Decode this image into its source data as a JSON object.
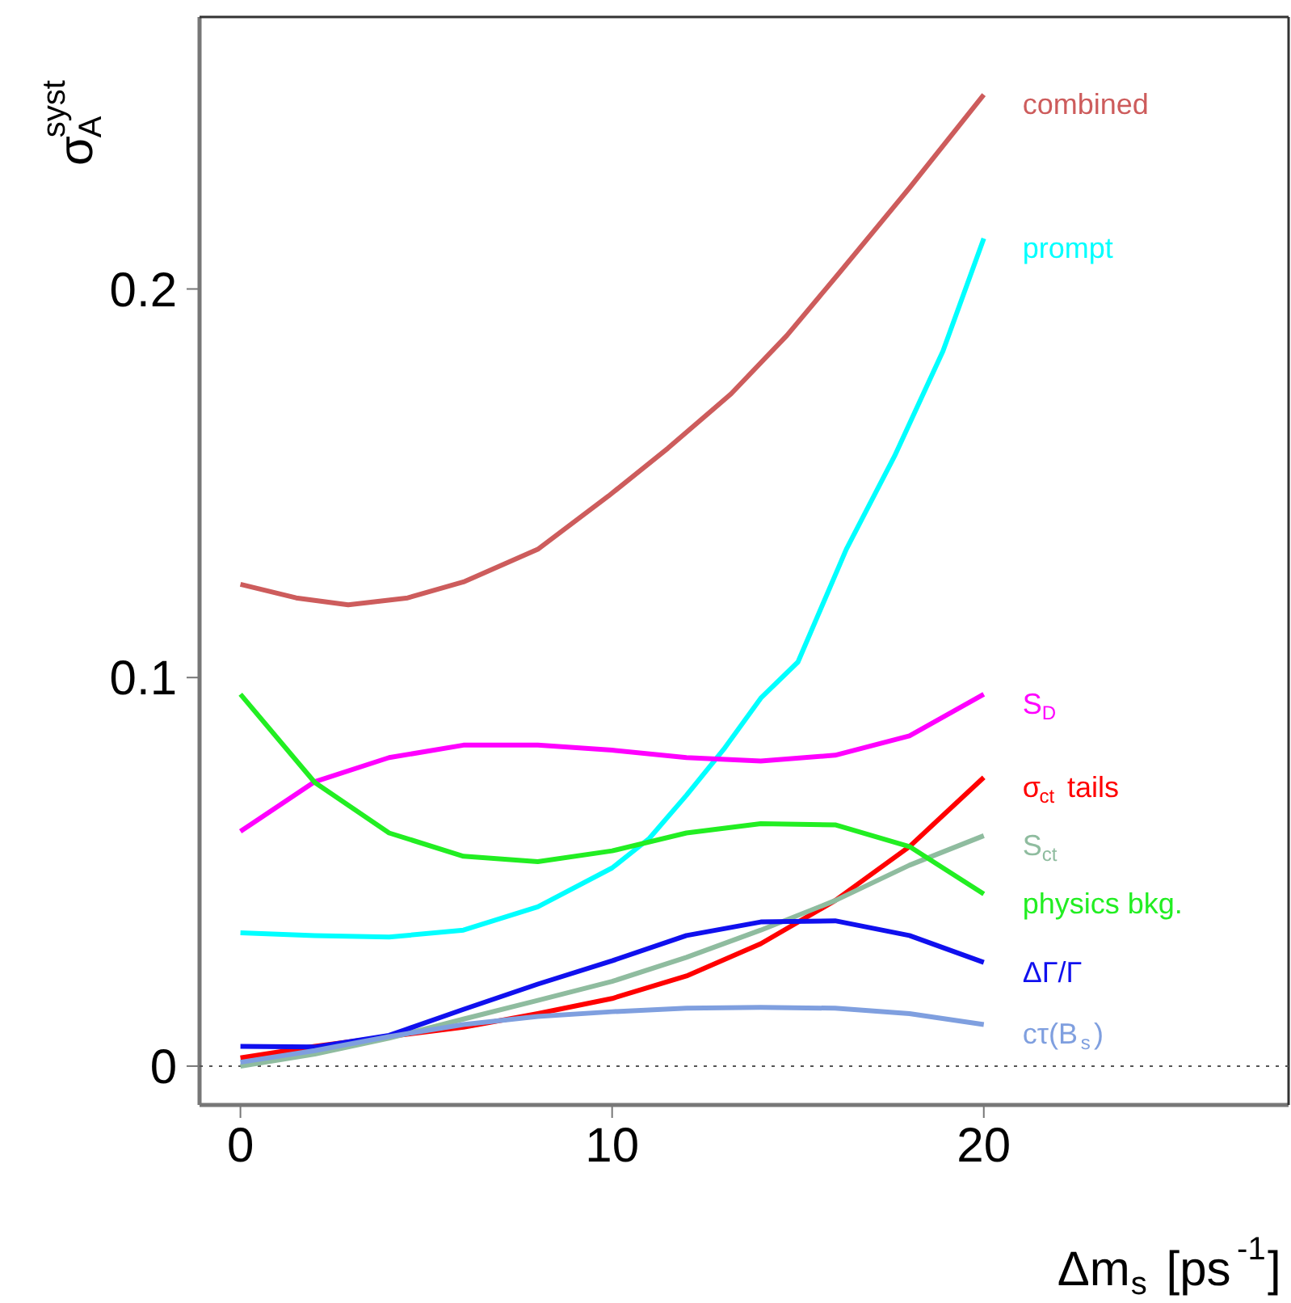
{
  "chart_data": {
    "type": "line",
    "xlabel": "Δm$_{s}$ [ps$^{-1}$]",
    "ylabel": "σ$_{A}$$^{syst}$",
    "xlim": [
      -1.1,
      28.2
    ],
    "ylim": [
      -0.01,
      0.27
    ],
    "xticks": [
      0,
      10,
      20
    ],
    "yticks": [
      0,
      0.1,
      0.2
    ],
    "grid": false,
    "marker": "none",
    "line_style": "solid",
    "ref_lines": [
      {
        "axis": "y",
        "value": 0,
        "color": "#555555",
        "line_style": "dotted"
      }
    ],
    "x": [
      0,
      2,
      4,
      6,
      8,
      10,
      12,
      14,
      16,
      18,
      20
    ],
    "series": [
      {
        "name": "combined",
        "color": "#cd5c5c",
        "x": [
          0,
          1.5,
          2.9,
          4.5,
          6,
          8,
          9.9,
          11.5,
          13.2,
          14.7,
          16.1,
          18,
          20
        ],
        "values": [
          0.124,
          0.1205,
          0.1187,
          0.1205,
          0.1246,
          0.133,
          0.1467,
          0.159,
          0.173,
          0.188,
          0.204,
          0.226,
          0.25
        ]
      },
      {
        "name": "prompt",
        "color": "#00ffff",
        "x": [
          0,
          2,
          4,
          6,
          8,
          10,
          11,
          12,
          13,
          14,
          15,
          16.3,
          17.6,
          18.9,
          20
        ],
        "values": [
          0.0343,
          0.0336,
          0.0332,
          0.035,
          0.041,
          0.051,
          0.0586,
          0.0697,
          0.0815,
          0.0947,
          0.104,
          0.133,
          0.157,
          0.184,
          0.213
        ]
      },
      {
        "name": "S$_{D}$",
        "color": "#ff00ff",
        "values": [
          0.0604,
          0.0732,
          0.0794,
          0.0826,
          0.0826,
          0.0813,
          0.0794,
          0.0785,
          0.08,
          0.085,
          0.0957
        ]
      },
      {
        "name": "σ$_{ct}$ tails",
        "color": "#ff0000",
        "values": [
          0.0021,
          0.0051,
          0.0076,
          0.01,
          0.0135,
          0.0174,
          0.0232,
          0.0315,
          0.0426,
          0.0565,
          0.0743
        ]
      },
      {
        "name": "S$_{ct}$",
        "color": "#8fbc9f",
        "values": [
          0.0,
          0.0031,
          0.0072,
          0.0121,
          0.0169,
          0.0218,
          0.028,
          0.035,
          0.0426,
          0.0517,
          0.0593
        ]
      },
      {
        "name": "physics bkg.",
        "color": "#22ee22",
        "values": [
          0.0957,
          0.073,
          0.06,
          0.054,
          0.0526,
          0.0554,
          0.06,
          0.0624,
          0.0621,
          0.0565,
          0.0443
        ]
      },
      {
        "name": "ΔΓ/Γ",
        "color": "#1010ee",
        "values": [
          0.0051,
          0.0049,
          0.0079,
          0.0146,
          0.0211,
          0.0271,
          0.0336,
          0.0371,
          0.0374,
          0.0336,
          0.0267
        ]
      },
      {
        "name": "cτ(B$_{s}$)",
        "color": "#7f9fdf",
        "values": [
          0.001,
          0.004,
          0.0076,
          0.0107,
          0.0128,
          0.014,
          0.0149,
          0.0151,
          0.0149,
          0.0135,
          0.0107
        ]
      }
    ]
  }
}
